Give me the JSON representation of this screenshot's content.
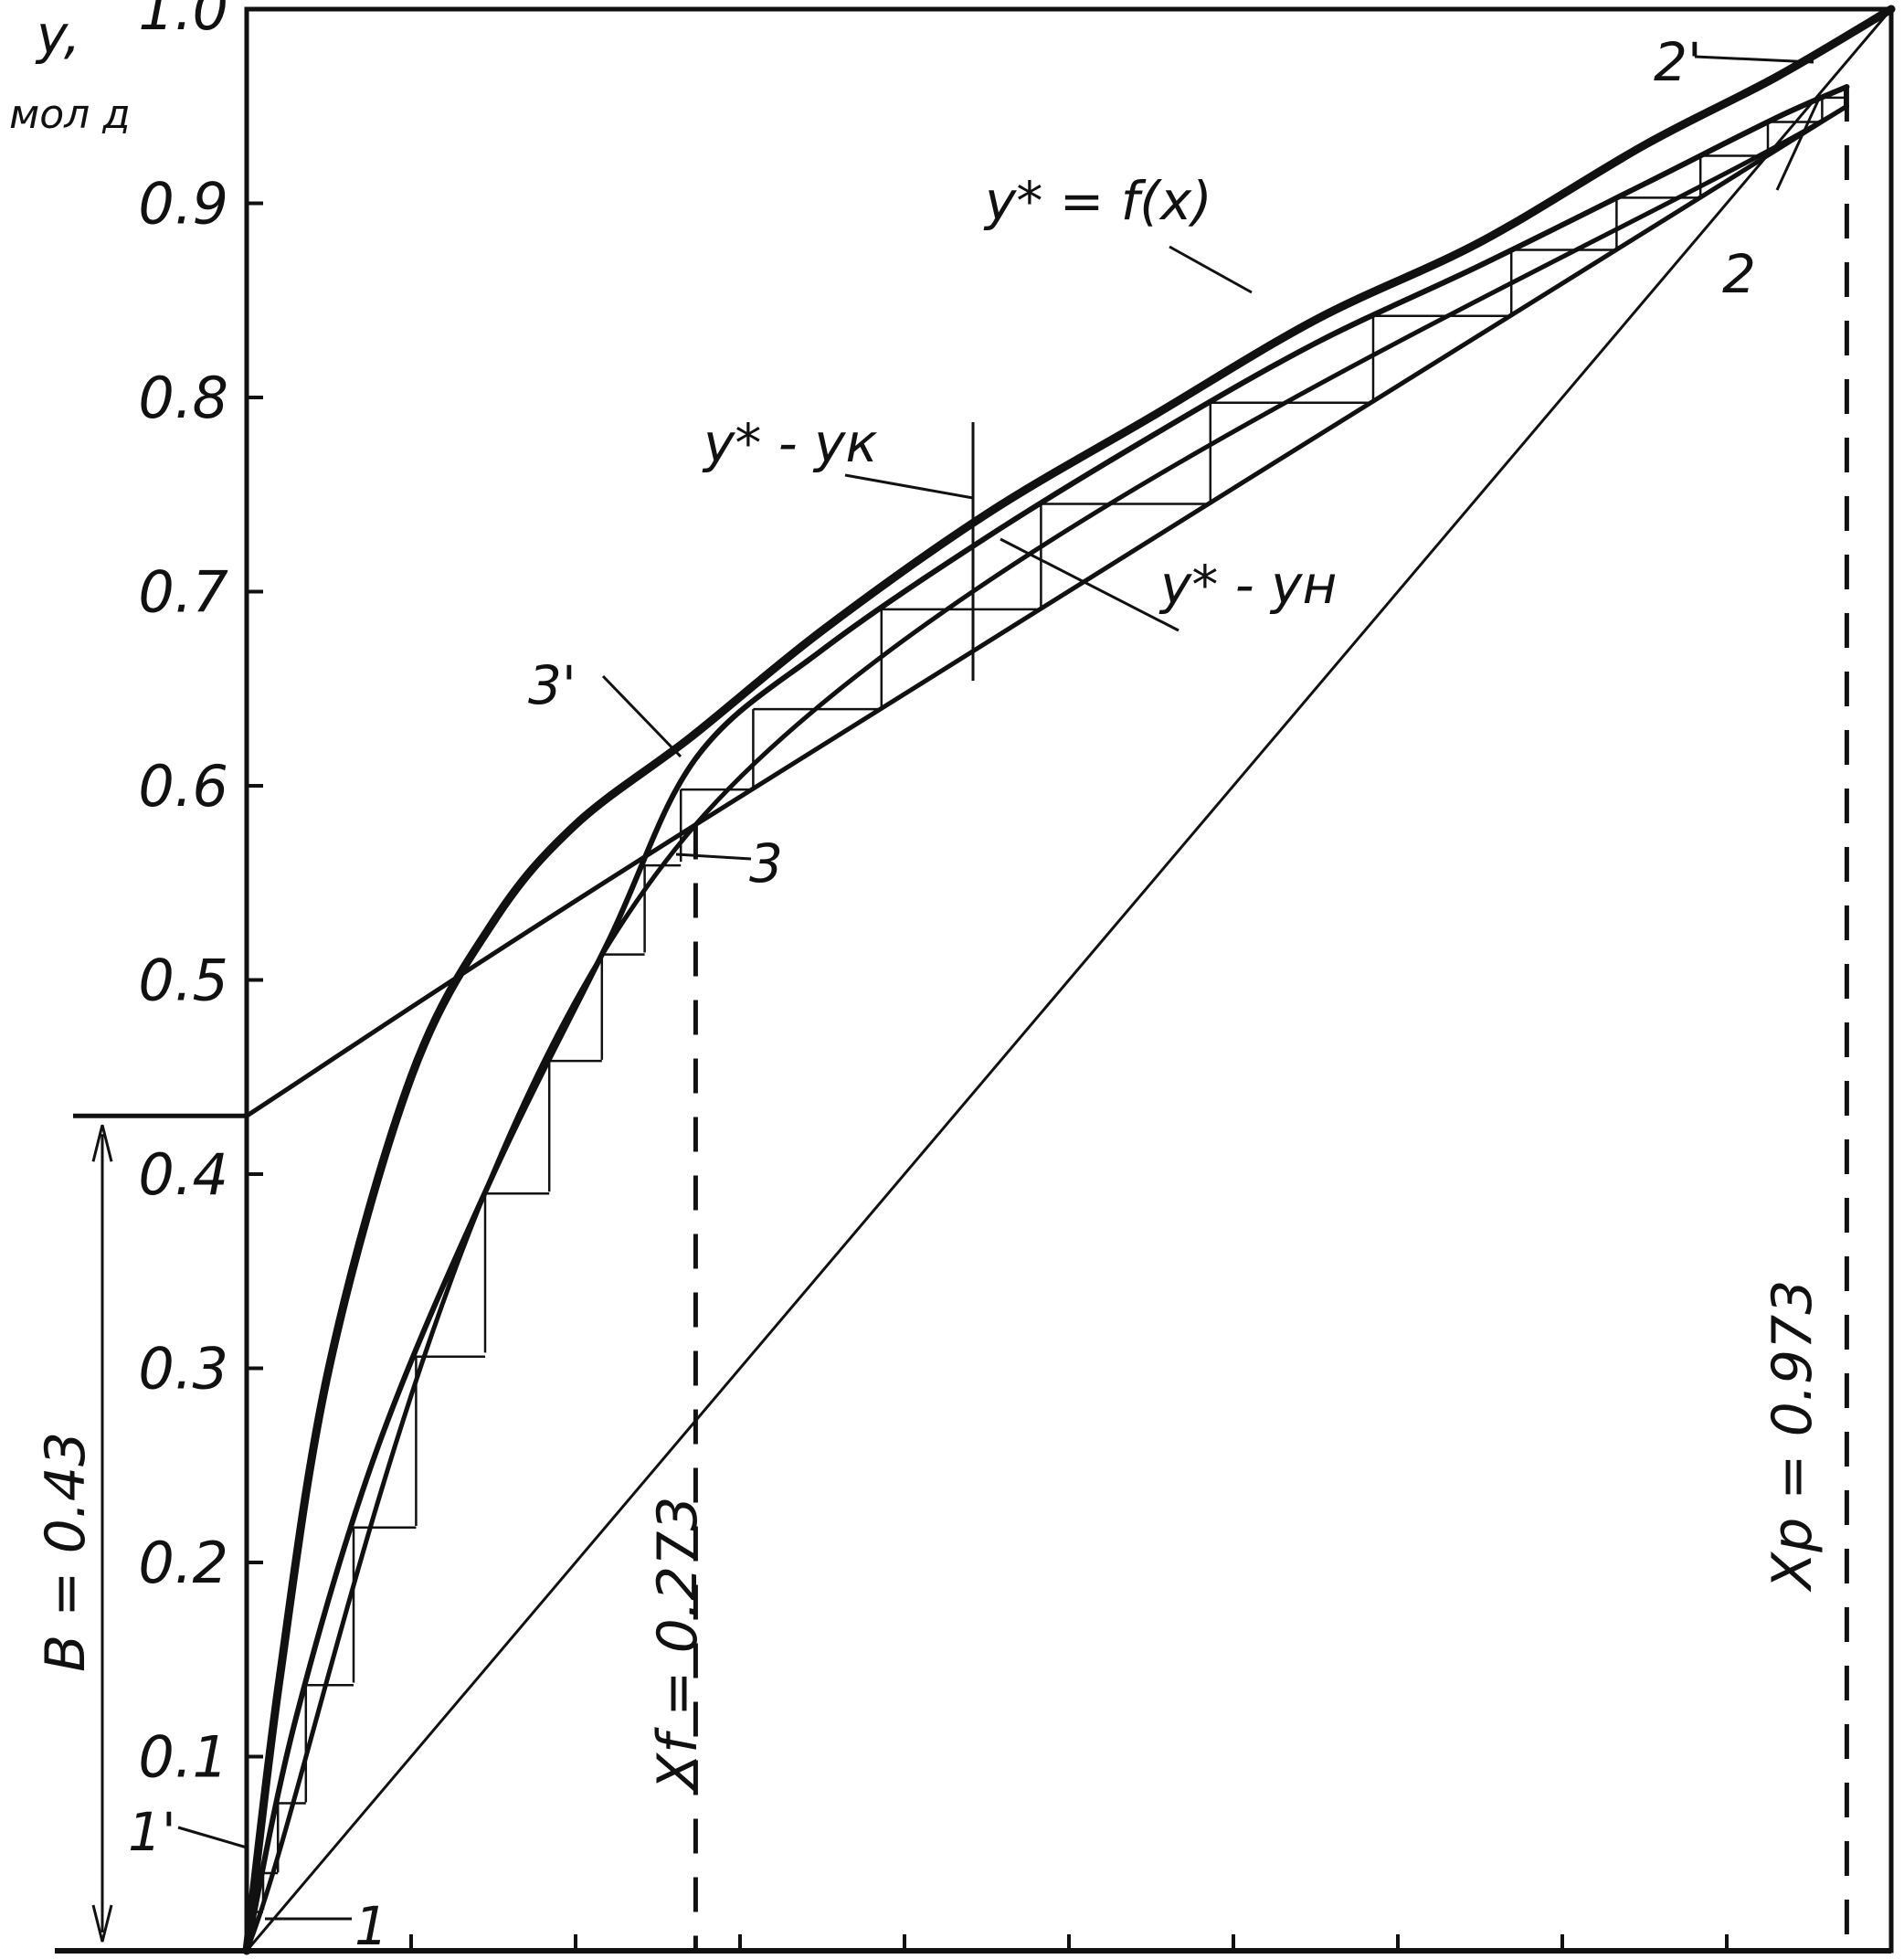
{
  "chart_data": {
    "type": "line",
    "ylabel": "y,",
    "yunit": "мол д",
    "ytick_labels": [
      "0.1",
      "0.2",
      "0.3",
      "0.4",
      "0.5",
      "0.6",
      "0.7",
      "0.8",
      "0.9",
      "1.0"
    ],
    "ytick_values": [
      0.1,
      0.2,
      0.3,
      0.4,
      0.5,
      0.6,
      0.7,
      0.8,
      0.9,
      1.0
    ],
    "xlim": [
      0,
      1
    ],
    "ylim": [
      0,
      1
    ],
    "xtick_values": [
      0.1,
      0.2,
      0.3,
      0.4,
      0.5,
      0.6,
      0.7,
      0.8,
      0.9,
      1.0
    ],
    "series": [
      {
        "name": "y* = f(x)",
        "x": [
          0,
          0.02,
          0.05,
          0.1,
          0.15,
          0.2,
          0.27,
          0.35,
          0.45,
          0.55,
          0.65,
          0.75,
          0.85,
          0.93,
          1.0
        ],
        "y": [
          0,
          0.14,
          0.3,
          0.45,
          0.53,
          0.58,
          0.625,
          0.68,
          0.74,
          0.79,
          0.84,
          0.88,
          0.93,
          0.965,
          1.0
        ]
      },
      {
        "name": "",
        "x": [
          0,
          0.03,
          0.08,
          0.15,
          0.22,
          0.273,
          0.35,
          0.45,
          0.55,
          0.65,
          0.75,
          0.85,
          0.93,
          0.973
        ],
        "y": [
          0,
          0.12,
          0.26,
          0.4,
          0.52,
          0.614,
          0.67,
          0.728,
          0.78,
          0.828,
          0.868,
          0.91,
          0.944,
          0.96
        ]
      },
      {
        "name": "",
        "x": [
          0,
          0.273,
          0.973
        ],
        "y": [
          0,
          0.58,
          0.95
        ]
      },
      {
        "name": "",
        "x": [
          0,
          0.273,
          0.973
        ],
        "y": [
          0.43,
          0.58,
          0.95
        ]
      },
      {
        "name": "",
        "x": [
          0,
          1
        ],
        "y": [
          0,
          1
        ]
      }
    ],
    "annotations": {
      "equilibrium_label": "y* = f(x)",
      "yk_label": "y* - yк",
      "yn_label": "y* - yн",
      "point_1": "1",
      "point_1p": "1'",
      "point_2": "2",
      "point_2p": "2'",
      "point_3": "3",
      "point_3p": "3'",
      "xf_label": "Xf = 0.273",
      "xp_label": "Xp = 0.973",
      "b_label": "B = 0.43"
    },
    "xf": 0.273,
    "xp": 0.973,
    "B": 0.43,
    "grid": false,
    "legend": "none"
  }
}
